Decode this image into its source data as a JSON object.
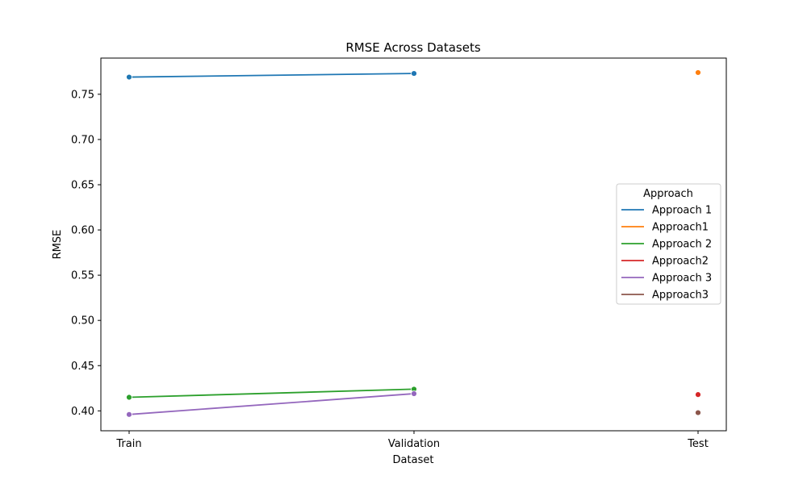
{
  "chart_data": {
    "type": "line",
    "title": "RMSE Across Datasets",
    "xlabel": "Dataset",
    "ylabel": "RMSE",
    "categories": [
      "Train",
      "Validation",
      "Test"
    ],
    "ylim": [
      0.378,
      0.79
    ],
    "yticks": [
      0.4,
      0.45,
      0.5,
      0.55,
      0.6,
      0.65,
      0.7,
      0.75
    ],
    "ytick_labels": [
      "0.40",
      "0.45",
      "0.50",
      "0.55",
      "0.60",
      "0.65",
      "0.70",
      "0.75"
    ],
    "grid": false,
    "legend": {
      "title": "Approach",
      "placement": "center-right"
    },
    "series": [
      {
        "name": "Approach 1",
        "color": "#1f77b4",
        "values": [
          0.769,
          0.773,
          null
        ]
      },
      {
        "name": "Approach1",
        "color": "#ff7f0e",
        "values": [
          null,
          null,
          0.774
        ]
      },
      {
        "name": "Approach 2",
        "color": "#2ca02c",
        "values": [
          0.415,
          0.424,
          null
        ]
      },
      {
        "name": "Approach2",
        "color": "#d62728",
        "values": [
          null,
          null,
          0.418
        ]
      },
      {
        "name": "Approach 3",
        "color": "#9467bd",
        "values": [
          0.396,
          0.419,
          null
        ]
      },
      {
        "name": "Approach3",
        "color": "#8c564b",
        "values": [
          null,
          null,
          0.398
        ]
      }
    ]
  }
}
